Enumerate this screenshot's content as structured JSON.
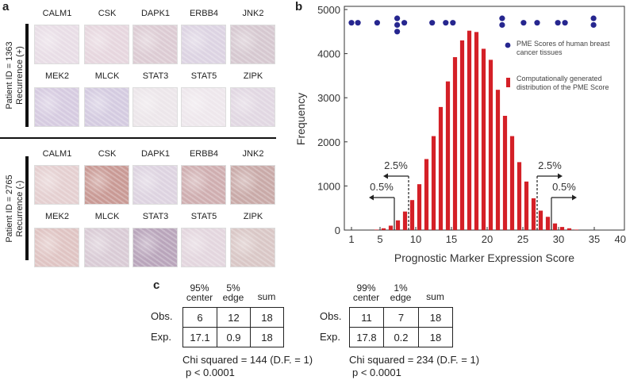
{
  "panel_a": {
    "letter": "a",
    "patients": [
      {
        "id_label": "Patient ID = 1363",
        "recurrence": "Recurrence (+)",
        "rows": [
          {
            "markers": [
              "CALM1",
              "CSK",
              "DAPK1",
              "ERBB4",
              "JNK2"
            ],
            "tints": [
              "#e8dde6",
              "#e6d6de",
              "#dccbd3",
              "#dcd3e2",
              "#d6c8d0"
            ]
          },
          {
            "markers": [
              "MEK2",
              "MLCK",
              "STAT3",
              "STAT5",
              "ZIPK"
            ],
            "tints": [
              "#d6cbe0",
              "#d4cbe0",
              "#ece6ea",
              "#eee7ec",
              "#e1d7e2"
            ]
          }
        ]
      },
      {
        "id_label": "Patient ID = 2765",
        "recurrence": "Recurrence (-)",
        "rows": [
          {
            "markers": [
              "CALM1",
              "CSK",
              "DAPK1",
              "ERBB4",
              "JNK2"
            ],
            "tints": [
              "#e4cfd0",
              "#c99a95",
              "#ddd3e0",
              "#cfaeb0",
              "#c9aaa8"
            ]
          },
          {
            "markers": [
              "MEK2",
              "MLCK",
              "STAT3",
              "STAT5",
              "ZIPK"
            ],
            "tints": [
              "#dfc4c3",
              "#d9cbd5",
              "#b9a5bb",
              "#e3d6de",
              "#d9c7c6"
            ]
          }
        ]
      }
    ]
  },
  "panel_b": {
    "letter": "b"
  },
  "chart_data": {
    "type": "bar",
    "xlabel": "Prognostic Marker Expression Score",
    "ylabel": "Frequency",
    "xlim": [
      0,
      39
    ],
    "ylim": [
      0,
      5000
    ],
    "xticks": [
      1,
      5,
      10,
      15,
      20,
      25,
      30,
      35,
      40
    ],
    "yticks": [
      0,
      1000,
      2000,
      3000,
      4000,
      5000
    ],
    "grid": false,
    "legend_placement": "right",
    "series": [
      {
        "name": "Computationally generated distribution of the PME Score",
        "type": "bar",
        "color": "#d42027",
        "x": [
          4.5,
          5.5,
          6.5,
          7.5,
          8.5,
          9.5,
          10.5,
          11.5,
          12.5,
          13.5,
          14.5,
          15.5,
          16.5,
          17.5,
          18.5,
          19.5,
          20.5,
          21.5,
          22.5,
          23.5,
          24.5,
          25.5,
          26.5,
          27.5,
          28.5,
          29.5,
          30.5,
          31.5,
          32.5
        ],
        "values": [
          10,
          40,
          100,
          220,
          420,
          680,
          1040,
          1610,
          2130,
          2790,
          3370,
          3920,
          4300,
          4520,
          4490,
          4110,
          3860,
          3180,
          2590,
          2130,
          1540,
          1100,
          720,
          440,
          300,
          150,
          70,
          40,
          10
        ]
      },
      {
        "name": "PME Scores of human breast cancer tissues",
        "type": "scatter",
        "color": "#26268f",
        "x": [
          1.0,
          1.9,
          4.6,
          7.4,
          7.4,
          7.4,
          8.4,
          12.3,
          14.2,
          15.2,
          22.1,
          22.1,
          25.1,
          27.0,
          29.9,
          30.9,
          34.9,
          34.9
        ],
        "y": [
          4700,
          4700,
          4700,
          4800,
          4650,
          4500,
          4700,
          4700,
          4700,
          4700,
          4800,
          4650,
          4700,
          4700,
          4700,
          4700,
          4800,
          4650
        ]
      }
    ],
    "annotations": [
      {
        "text": "2.5%",
        "x": 9,
        "direction": "left",
        "line": "dashed"
      },
      {
        "text": "0.5%",
        "x": 7,
        "direction": "left",
        "line": "solid"
      },
      {
        "text": "2.5%",
        "x": 27,
        "direction": "right",
        "line": "dashed"
      },
      {
        "text": "0.5%",
        "x": 29,
        "direction": "right",
        "line": "solid"
      }
    ]
  },
  "panel_c": {
    "letter": "c",
    "tables": [
      {
        "headers": [
          [
            "95%",
            "center"
          ],
          [
            "5%",
            "edge"
          ],
          [
            "sum"
          ]
        ],
        "rows": [
          {
            "label": "Obs.",
            "cells": [
              "6",
              "12",
              "18"
            ]
          },
          {
            "label": "Exp.",
            "cells": [
              "17.1",
              "0.9",
              "18"
            ]
          }
        ],
        "chi": "Chi squared = 144 (D.F. = 1)",
        "p": "p < 0.0001"
      },
      {
        "headers": [
          [
            "99%",
            "center"
          ],
          [
            "1%",
            "edge"
          ],
          [
            "sum"
          ]
        ],
        "rows": [
          {
            "label": "Obs.",
            "cells": [
              "11",
              "7",
              "18"
            ]
          },
          {
            "label": "Exp.",
            "cells": [
              "17.8",
              "0.2",
              "18"
            ]
          }
        ],
        "chi": "Chi squared = 234 (D.F. = 1)",
        "p": "p < 0.0001"
      }
    ]
  }
}
